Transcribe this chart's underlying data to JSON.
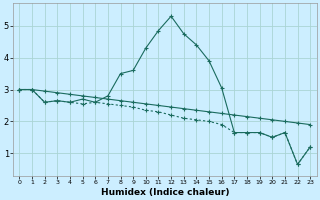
{
  "xlabel": "Humidex (Indice chaleur)",
  "background_color": "#cceeff",
  "line_color": "#1a6b5e",
  "grid_color": "#aad4d4",
  "xlim": [
    -0.5,
    23.5
  ],
  "ylim": [
    0.3,
    5.7
  ],
  "yticks": [
    1,
    2,
    3,
    4,
    5
  ],
  "xticks": [
    0,
    1,
    2,
    3,
    4,
    5,
    6,
    7,
    8,
    9,
    10,
    11,
    12,
    13,
    14,
    15,
    16,
    17,
    18,
    19,
    20,
    21,
    22,
    23
  ],
  "line1_x": [
    0,
    1,
    2,
    3,
    4,
    5,
    6,
    7,
    8,
    9,
    10,
    11,
    12,
    13,
    14,
    15,
    16,
    17,
    18,
    19,
    20,
    21,
    22,
    23
  ],
  "line1_y": [
    3.0,
    3.0,
    2.95,
    2.9,
    2.85,
    2.8,
    2.75,
    2.7,
    2.65,
    2.6,
    2.55,
    2.5,
    2.45,
    2.4,
    2.35,
    2.3,
    2.25,
    2.2,
    2.15,
    2.1,
    2.05,
    2.0,
    1.95,
    1.9
  ],
  "line2_x": [
    0,
    1,
    2,
    3,
    4,
    5,
    6,
    7,
    8,
    9,
    10,
    11,
    12,
    13,
    14,
    15,
    16,
    17,
    18,
    19,
    20,
    21,
    22,
    23
  ],
  "line2_y": [
    3.0,
    3.0,
    2.6,
    2.65,
    2.6,
    2.7,
    2.6,
    2.8,
    3.5,
    3.6,
    4.3,
    4.85,
    5.3,
    4.75,
    4.4,
    3.9,
    3.05,
    1.65,
    1.65,
    1.65,
    1.5,
    1.65,
    0.65,
    1.2
  ],
  "line3_x": [
    0,
    1,
    2,
    3,
    4,
    5,
    6,
    7,
    8,
    9,
    10,
    11,
    12,
    13,
    14,
    15,
    16,
    17,
    18,
    19,
    20,
    21,
    22,
    23
  ],
  "line3_y": [
    3.0,
    3.0,
    2.6,
    2.65,
    2.6,
    2.55,
    2.6,
    2.55,
    2.5,
    2.45,
    2.35,
    2.3,
    2.2,
    2.1,
    2.05,
    2.0,
    1.9,
    1.65,
    1.65,
    1.65,
    1.5,
    1.65,
    0.65,
    1.2
  ]
}
